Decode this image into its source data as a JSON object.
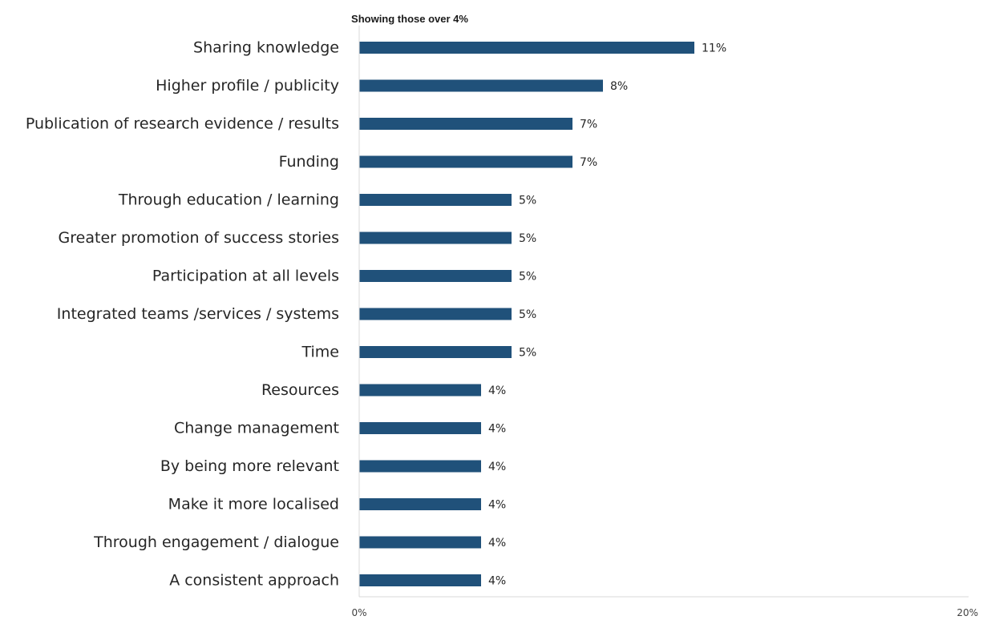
{
  "chart_data": {
    "type": "bar",
    "orientation": "horizontal",
    "subtitle": "Showing those over 4%",
    "categories": [
      "Sharing knowledge",
      "Higher profile / publicity",
      "Publication of research evidence / results",
      "Funding",
      "Through education / learning",
      "Greater promotion of success stories",
      "Participation at all levels",
      "Integrated teams /services / systems",
      "Time",
      "Resources",
      "Change management",
      "By being more relevant",
      "Make it more localised",
      "Through engagement  / dialogue",
      "A consistent approach"
    ],
    "values": [
      11,
      8,
      7,
      7,
      5,
      5,
      5,
      5,
      5,
      4,
      4,
      4,
      4,
      4,
      4
    ],
    "value_labels": [
      "11%",
      "8%",
      "7%",
      "7%",
      "5%",
      "5%",
      "5%",
      "5%",
      "5%",
      "4%",
      "4%",
      "4%",
      "4%",
      "4%",
      "4%"
    ],
    "xlim": [
      0,
      20
    ],
    "x_ticks": [
      "0%",
      "20%"
    ],
    "grid": false,
    "bar_color": "#20517a",
    "axis_color": "#d9d9d9"
  }
}
